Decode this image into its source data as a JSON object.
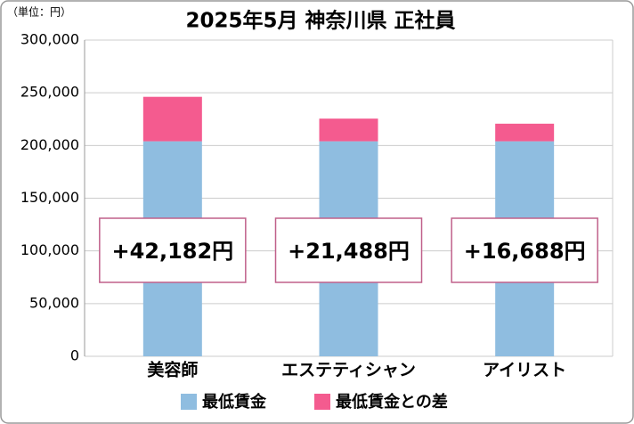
{
  "chart_data": {
    "type": "stacked_bar",
    "title": "2025年5月 神奈川県 正社員",
    "y_unit": "（単位：円）",
    "categories": [
      "美容師",
      "エステティシャン",
      "アイリスト"
    ],
    "series": [
      {
        "name": "最低賃金",
        "color": "#8fbde0",
        "values": [
          204000,
          204000,
          204000
        ]
      },
      {
        "name": "最低賃金との差",
        "color": "#f45b8f",
        "values": [
          42182,
          21488,
          16688
        ],
        "value_labels": [
          "+42,182円",
          "+21,488円",
          "+16,688円"
        ]
      }
    ],
    "ylim": [
      0,
      300000
    ],
    "yticks": [
      0,
      {
        "value": 50000,
        "label": "50,000"
      },
      {
        "value": 100000,
        "label": "100,000"
      },
      {
        "value": 150000,
        "label": "150,000"
      },
      {
        "value": 200000,
        "label": "200,000"
      },
      {
        "value": 250000,
        "label": "250,000"
      },
      {
        "value": 300000,
        "label": "300,000"
      }
    ],
    "grid": true
  }
}
